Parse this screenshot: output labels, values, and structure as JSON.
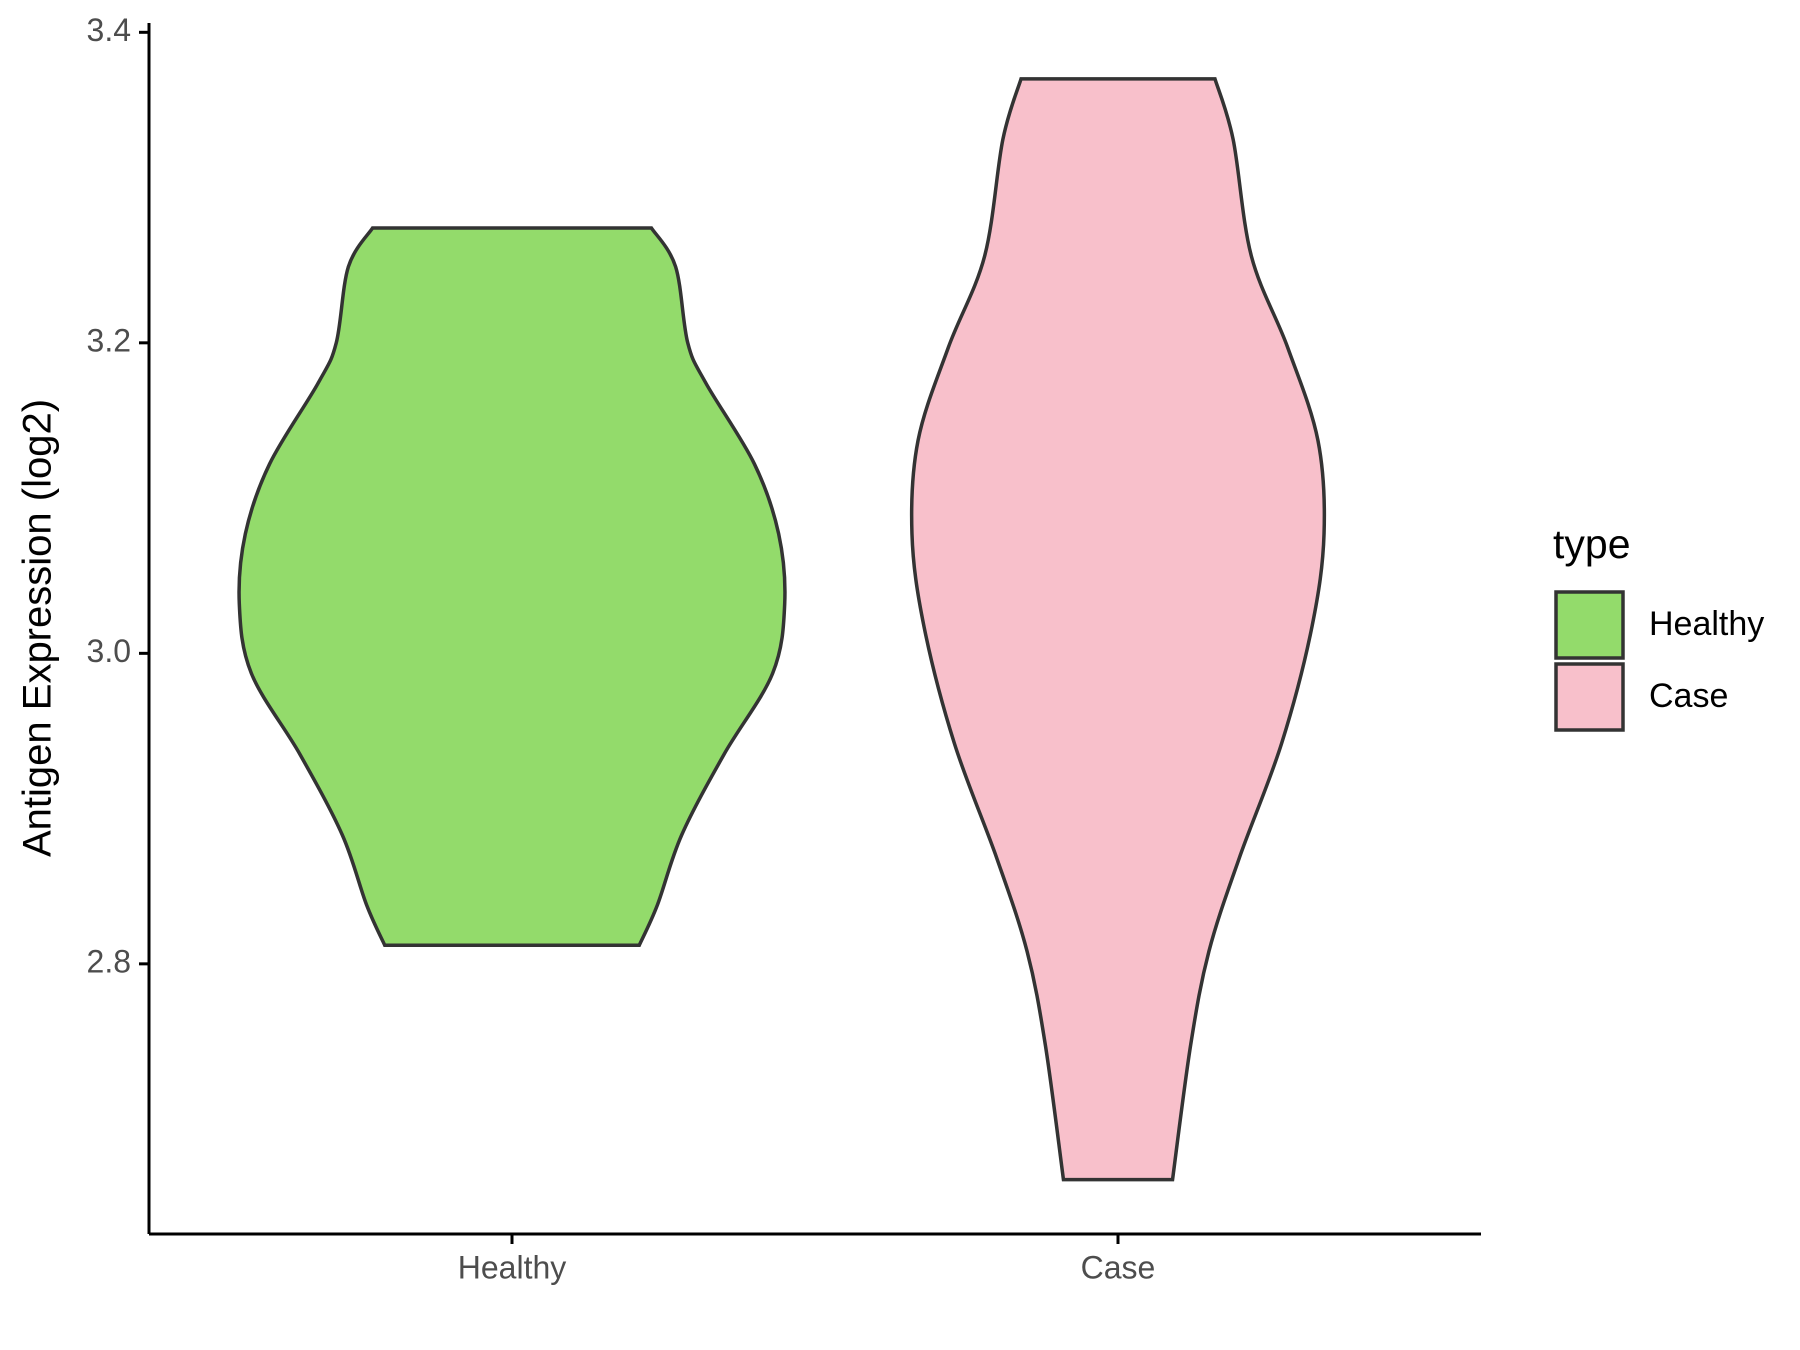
{
  "chart_data": {
    "type": "violin",
    "ylabel": "Antigen Expression (log2)",
    "legend_title": "type",
    "categories": [
      "Healthy",
      "Case"
    ],
    "ylim": [
      2.626,
      3.406
    ],
    "yticks": [
      2.8,
      {
        "value": 3,
        "label": "3.0"
      },
      3.2,
      3.4
    ],
    "legend": "right",
    "series": [
      {
        "name": "Healthy",
        "color": "#93db6b",
        "y": [
          3.274,
          3.249,
          3.2,
          3.174,
          3.122,
          3.077,
          3.032,
          2.987,
          2.935,
          2.883,
          2.838,
          2.812
        ],
        "half_width": [
          0.23,
          0.27,
          0.29,
          0.32,
          0.4,
          0.44,
          0.45,
          0.43,
          0.35,
          0.28,
          0.24,
          0.21
        ]
      },
      {
        "name": "Case",
        "color": "#f8c0cb",
        "y": [
          3.37,
          3.331,
          3.256,
          3.197,
          3.137,
          3.077,
          3.017,
          2.942,
          2.868,
          2.808,
          2.748,
          2.661
        ],
        "half_width": [
          0.16,
          0.19,
          0.22,
          0.28,
          0.33,
          0.34,
          0.32,
          0.27,
          0.2,
          0.15,
          0.12,
          0.09
        ]
      }
    ]
  }
}
